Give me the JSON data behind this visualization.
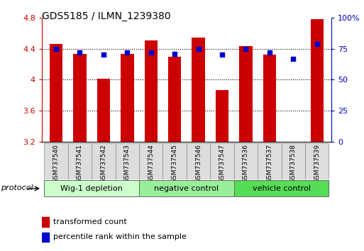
{
  "title": "GDS5185 / ILMN_1239380",
  "samples": [
    "GSM737540",
    "GSM737541",
    "GSM737542",
    "GSM737543",
    "GSM737544",
    "GSM737545",
    "GSM737546",
    "GSM737547",
    "GSM737536",
    "GSM737537",
    "GSM737538",
    "GSM737539"
  ],
  "bar_values": [
    4.46,
    4.33,
    4.01,
    4.33,
    4.51,
    4.3,
    4.54,
    3.87,
    4.43,
    4.32,
    3.2,
    4.78
  ],
  "dot_values": [
    75,
    72,
    70,
    72,
    72,
    71,
    75,
    70,
    75,
    72,
    67,
    79
  ],
  "ylim_left": [
    3.2,
    4.8
  ],
  "ylim_right": [
    0,
    100
  ],
  "yticks_left": [
    3.2,
    3.6,
    4.0,
    4.4,
    4.8
  ],
  "yticks_right": [
    0,
    25,
    50,
    75,
    100
  ],
  "ytick_labels_left": [
    "3.2",
    "3.6",
    "4",
    "4.4",
    "4.8"
  ],
  "ytick_labels_right": [
    "0",
    "25",
    "50",
    "75",
    "100%"
  ],
  "bar_color": "#CC0000",
  "dot_color": "#0000CC",
  "groups": [
    {
      "label": "Wig-1 depletion",
      "indices": [
        0,
        1,
        2,
        3
      ],
      "color": "#CCFFCC"
    },
    {
      "label": "negative control",
      "indices": [
        4,
        5,
        6,
        7
      ],
      "color": "#99EE99"
    },
    {
      "label": "vehicle control",
      "indices": [
        8,
        9,
        10,
        11
      ],
      "color": "#55DD55"
    }
  ],
  "protocol_label": "protocol",
  "legend_bar_label": "transformed count",
  "legend_dot_label": "percentile rank within the sample",
  "grid_hlines": [
    3.6,
    4.0,
    4.4
  ],
  "plot_bg": "#FFFFFF",
  "left_tick_color": "#CC0000",
  "right_tick_color": "#0000CC",
  "bar_bottom": 3.2
}
